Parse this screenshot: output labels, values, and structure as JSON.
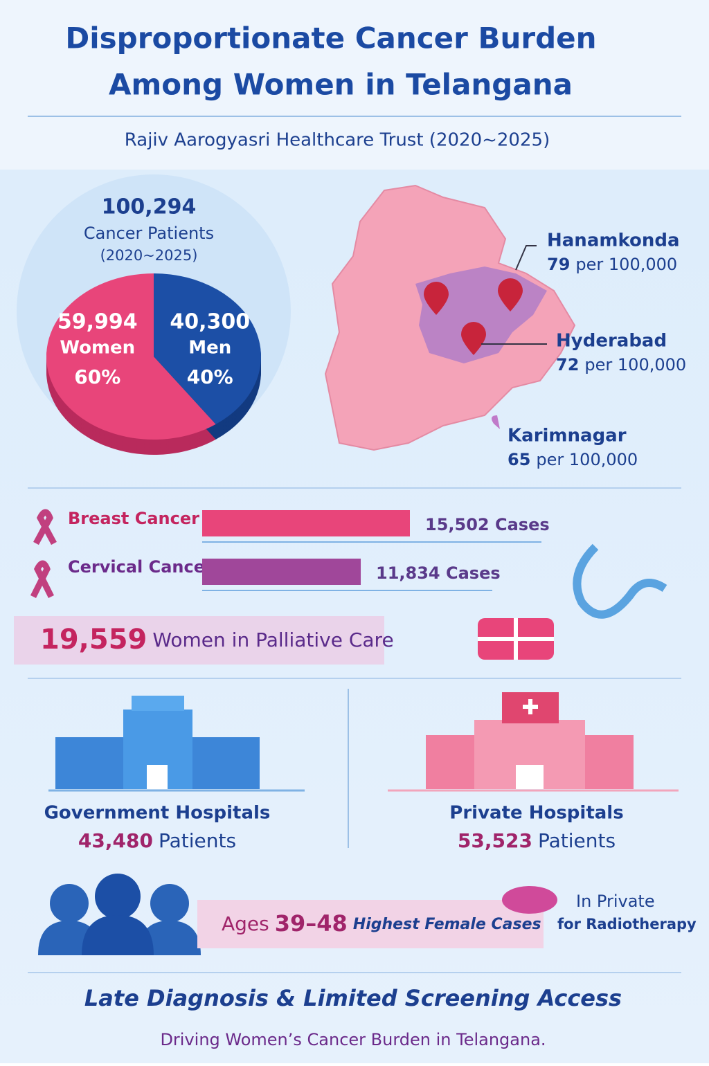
{
  "header": {
    "title_line1": "Disproportionate Cancer Burden",
    "title_line2": "Among Women in Telangana",
    "subtitle": "Rajiv Aarogyasri Healthcare Trust (2020~2025)"
  },
  "pie": {
    "total": "100,294",
    "total_label": "Cancer Patients",
    "period": "(2020~2025)",
    "slices": [
      {
        "name": "Women",
        "value": 59994,
        "value_label": "59,994",
        "percent_label": "60%",
        "color": "#e8457a"
      },
      {
        "name": "Men",
        "value": 40300,
        "value_label": "40,300",
        "percent_label": "40%",
        "color": "#1c4fa6"
      }
    ]
  },
  "districts": [
    {
      "name": "Hanamkonda",
      "rate": "79",
      "unit": "per 100,000"
    },
    {
      "name": "Hyderabad",
      "rate": "72",
      "unit": "per 100,000"
    },
    {
      "name": "Karimnagar",
      "rate": "65",
      "unit": "per 100,000"
    }
  ],
  "cancers": [
    {
      "name": "Breast Cancer",
      "value": 15502,
      "value_label": "15,502 Cases",
      "color": "#e8457a"
    },
    {
      "name": "Cervical Cancer",
      "value": 11834,
      "value_label": "11,834 Cases",
      "color": "#a0479a"
    }
  ],
  "palliative": {
    "value": "19,559",
    "text": "Women in Palliative Care"
  },
  "hospitals": {
    "government": {
      "title": "Government Hospitals",
      "value": "43,480",
      "unit": "Patients"
    },
    "private": {
      "title": "Private Hospitals",
      "value": "53,523",
      "unit": "Patients"
    }
  },
  "ages": {
    "label": "Ages",
    "range": "39–48",
    "text": "Highest Female Cases"
  },
  "radiotherapy": {
    "line1": "In Private",
    "line2": "for Radiotherapy"
  },
  "footer": {
    "headline": "Late Diagnosis & Limited Screening Access",
    "subline": "Driving Women’s Cancer Burden in Telangana."
  }
}
